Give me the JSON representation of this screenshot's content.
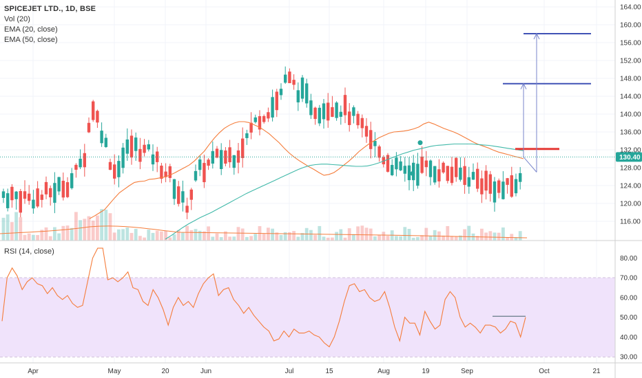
{
  "legend": {
    "symbol": "SPICEJET LTD., 1D, BSE",
    "volume": "Vol (20)",
    "ema20": "EMA (20, close)",
    "ema50": "EMA (50, close)",
    "rsi": "RSI (14, close)"
  },
  "colors": {
    "up": "#26a69a",
    "down": "#ef5350",
    "ema20": "#f57c3a",
    "ema50": "#3fb8a8",
    "rsi": "#f57c3a",
    "rsi_band": "#f0e3fb",
    "arrow": "#3f51b5",
    "level_red": "#e53935",
    "last_price": "#26a69a"
  },
  "last_price_label": "130.40",
  "chart_data": [
    {
      "type": "candlestick",
      "title": "SPICEJET LTD., 1D, BSE",
      "x_ticks": [
        "Apr",
        "May",
        "20",
        "Jun",
        "Jul",
        "15",
        "Aug",
        "19",
        "Sep",
        "Oct",
        "21"
      ],
      "y_ticks": [
        "164.00",
        "160.00",
        "156.00",
        "152.00",
        "148.00",
        "144.00",
        "140.00",
        "136.00",
        "132.00",
        "128.00",
        "124.00",
        "120.00",
        "116.00"
      ],
      "ylim": [
        112,
        166
      ],
      "last_price": 130.4,
      "series": [
        {
          "name": "EMA (20, close)",
          "values": [
            116.6,
            117.2,
            117.9,
            118.6,
            119.9,
            121.2,
            122.4,
            123.2,
            124.0,
            124.7,
            124.9,
            125.0,
            125.4,
            125.5,
            125.7,
            125.9,
            126.3,
            126.8,
            127.4,
            128.0,
            128.6,
            129.5,
            130.6,
            131.7,
            133.2,
            134.6,
            135.8,
            136.8,
            137.5,
            138.0,
            138.3,
            138.3,
            138.1,
            137.6,
            137.1,
            136.4,
            135.6,
            134.6,
            133.6,
            132.4,
            131.3,
            130.4,
            129.6,
            128.9,
            128.2,
            127.6,
            126.9,
            126.3,
            126.5,
            126.9,
            127.7,
            128.6,
            129.5,
            130.5,
            131.6,
            132.5,
            133.3,
            134.0,
            134.7,
            135.2,
            135.7,
            136.0,
            136.1,
            136.2,
            136.4,
            136.7,
            137.1,
            137.8,
            138.2,
            137.8,
            137.3,
            136.8,
            136.4,
            136.0,
            135.5,
            134.9,
            134.3,
            133.7,
            133.2,
            132.8,
            132.4,
            131.9,
            131.5,
            131.2,
            130.9,
            130.6,
            130.3,
            130.0
          ]
        },
        {
          "name": "EMA (50, close)",
          "values": [
            112.0,
            112.8,
            113.7,
            114.6,
            115.4,
            116.1,
            116.8,
            117.4,
            118.0,
            118.7,
            119.4,
            120.1,
            120.8,
            121.5,
            122.2,
            122.8,
            123.4,
            124.0,
            124.6,
            125.2,
            125.8,
            126.4,
            127.0,
            127.6,
            128.1,
            128.5,
            128.7,
            128.8,
            128.8,
            128.7,
            128.6,
            128.5,
            128.4,
            128.3,
            128.3,
            128.4,
            128.7,
            129.1,
            129.6,
            130.1,
            130.6,
            131.1,
            131.5,
            131.9,
            132.2,
            132.5,
            132.8,
            133.0,
            133.1,
            133.2,
            133.3,
            133.3,
            133.3,
            133.3,
            133.2,
            133.1,
            133.0,
            132.8,
            132.6,
            132.4,
            132.2,
            132.0,
            131.8
          ]
        },
        {
          "name": "RSI (14, close)",
          "values": [
            48,
            70,
            75,
            71,
            64,
            68,
            70,
            67,
            66,
            62,
            65,
            61,
            59,
            61,
            57,
            55,
            56,
            68,
            80,
            85,
            85,
            69,
            70,
            68,
            70,
            73,
            65,
            64,
            58,
            56,
            64,
            60,
            54,
            46,
            55,
            60,
            56,
            58,
            55,
            62,
            67,
            70,
            72,
            61,
            64,
            65,
            59,
            56,
            52,
            55,
            51,
            48,
            45,
            43,
            38,
            39,
            43,
            40,
            44,
            42,
            42,
            43,
            41,
            40,
            37,
            35,
            40,
            48,
            58,
            66,
            67,
            63,
            64,
            60,
            58,
            59,
            63,
            55,
            45,
            38,
            50,
            47,
            47,
            41,
            53,
            48,
            44,
            46,
            59,
            63,
            60,
            50,
            45,
            47,
            45,
            42,
            46,
            46,
            45,
            42,
            44,
            48,
            47,
            40,
            50
          ]
        }
      ]
    }
  ]
}
